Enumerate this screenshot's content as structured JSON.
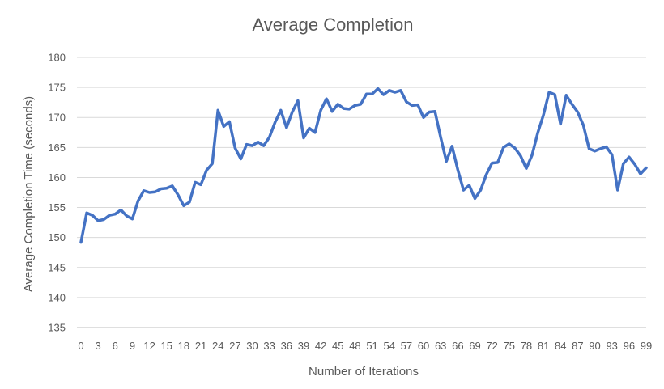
{
  "chart_data": {
    "type": "line",
    "title": "Average Completion",
    "xlabel": "Number of Iterations",
    "ylabel": "Average Completion Time (seconds)",
    "ylim": [
      135,
      180
    ],
    "yticks": [
      135,
      140,
      145,
      150,
      155,
      160,
      165,
      170,
      175,
      180
    ],
    "xlim": [
      0,
      99
    ],
    "xticks": [
      0,
      3,
      6,
      9,
      12,
      15,
      18,
      21,
      24,
      27,
      30,
      33,
      36,
      39,
      42,
      45,
      48,
      51,
      54,
      57,
      60,
      63,
      66,
      69,
      72,
      75,
      78,
      81,
      84,
      87,
      90,
      93,
      96,
      99
    ],
    "grid": true,
    "legend": "none",
    "color": "#4472c4",
    "series": [
      {
        "x": [
          0,
          1,
          2,
          3,
          4,
          5,
          6,
          7,
          8,
          9,
          10,
          11,
          12,
          13,
          14,
          15,
          16,
          17,
          18,
          19,
          20,
          21,
          22,
          23,
          24,
          25,
          26,
          27,
          28,
          29,
          30,
          31,
          32,
          33,
          34,
          35,
          36,
          37,
          38,
          39,
          40,
          41,
          42,
          43,
          44,
          45,
          46,
          47,
          48,
          49,
          50,
          51,
          52,
          53,
          54,
          55,
          56,
          57,
          58,
          59,
          60,
          61,
          62,
          63,
          64,
          65,
          66,
          67,
          68,
          69,
          70,
          71,
          72,
          73,
          74,
          75,
          76,
          77,
          78,
          79,
          80,
          81,
          82,
          83,
          84,
          85,
          86,
          87,
          88,
          89,
          90,
          91,
          92,
          93,
          94,
          95,
          96,
          97,
          98,
          99
        ],
        "values": [
          149.2,
          154.1,
          153.7,
          152.8,
          153.0,
          153.7,
          153.9,
          154.6,
          153.6,
          153.1,
          156.1,
          157.8,
          157.5,
          157.6,
          158.1,
          158.2,
          158.6,
          157.1,
          155.3,
          155.9,
          159.2,
          158.8,
          161.2,
          162.3,
          171.2,
          168.5,
          169.3,
          164.9,
          163.1,
          165.5,
          165.3,
          165.9,
          165.3,
          166.7,
          169.2,
          171.2,
          168.3,
          170.9,
          172.8,
          166.6,
          168.2,
          167.5,
          171.2,
          173.1,
          171.0,
          172.2,
          171.5,
          171.4,
          172.0,
          172.2,
          173.9,
          173.9,
          174.8,
          173.8,
          174.5,
          174.2,
          174.5,
          172.6,
          172.0,
          172.1,
          170.0,
          170.9,
          171.0,
          166.7,
          162.7,
          165.2,
          161.3,
          157.9,
          158.7,
          156.5,
          157.9,
          160.5,
          162.4,
          162.5,
          165.0,
          165.6,
          164.9,
          163.6,
          161.5,
          163.7,
          167.4,
          170.4,
          174.2,
          173.8,
          168.9,
          173.7,
          172.2,
          170.9,
          168.7,
          164.8,
          164.4,
          164.8,
          165.1,
          163.8,
          157.9,
          162.3,
          163.4,
          162.2,
          160.6,
          161.6
        ]
      }
    ]
  }
}
